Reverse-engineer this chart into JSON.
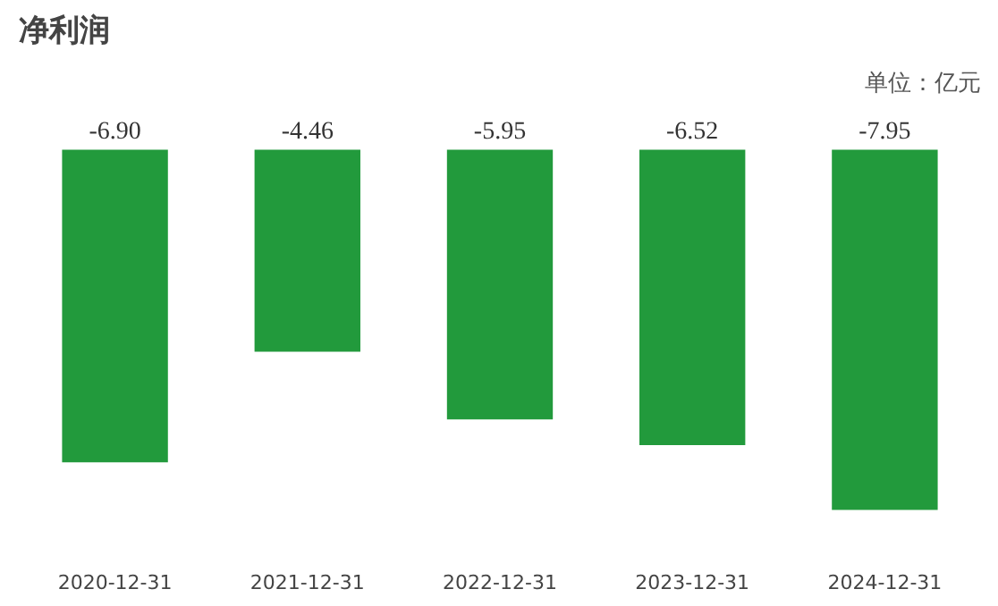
{
  "chart_data": {
    "type": "bar",
    "title": "净利润",
    "annotations": [
      "单位：亿元"
    ],
    "categories": [
      "2020-12-31",
      "2021-12-31",
      "2022-12-31",
      "2023-12-31",
      "2024-12-31"
    ],
    "values": [
      -6.9,
      -4.46,
      -5.95,
      -6.52,
      -7.95
    ],
    "color": "#229a3c",
    "value_labels": [
      "-6.90",
      "-4.46",
      "-5.95",
      "-6.52",
      "-7.95"
    ],
    "grid": false
  }
}
